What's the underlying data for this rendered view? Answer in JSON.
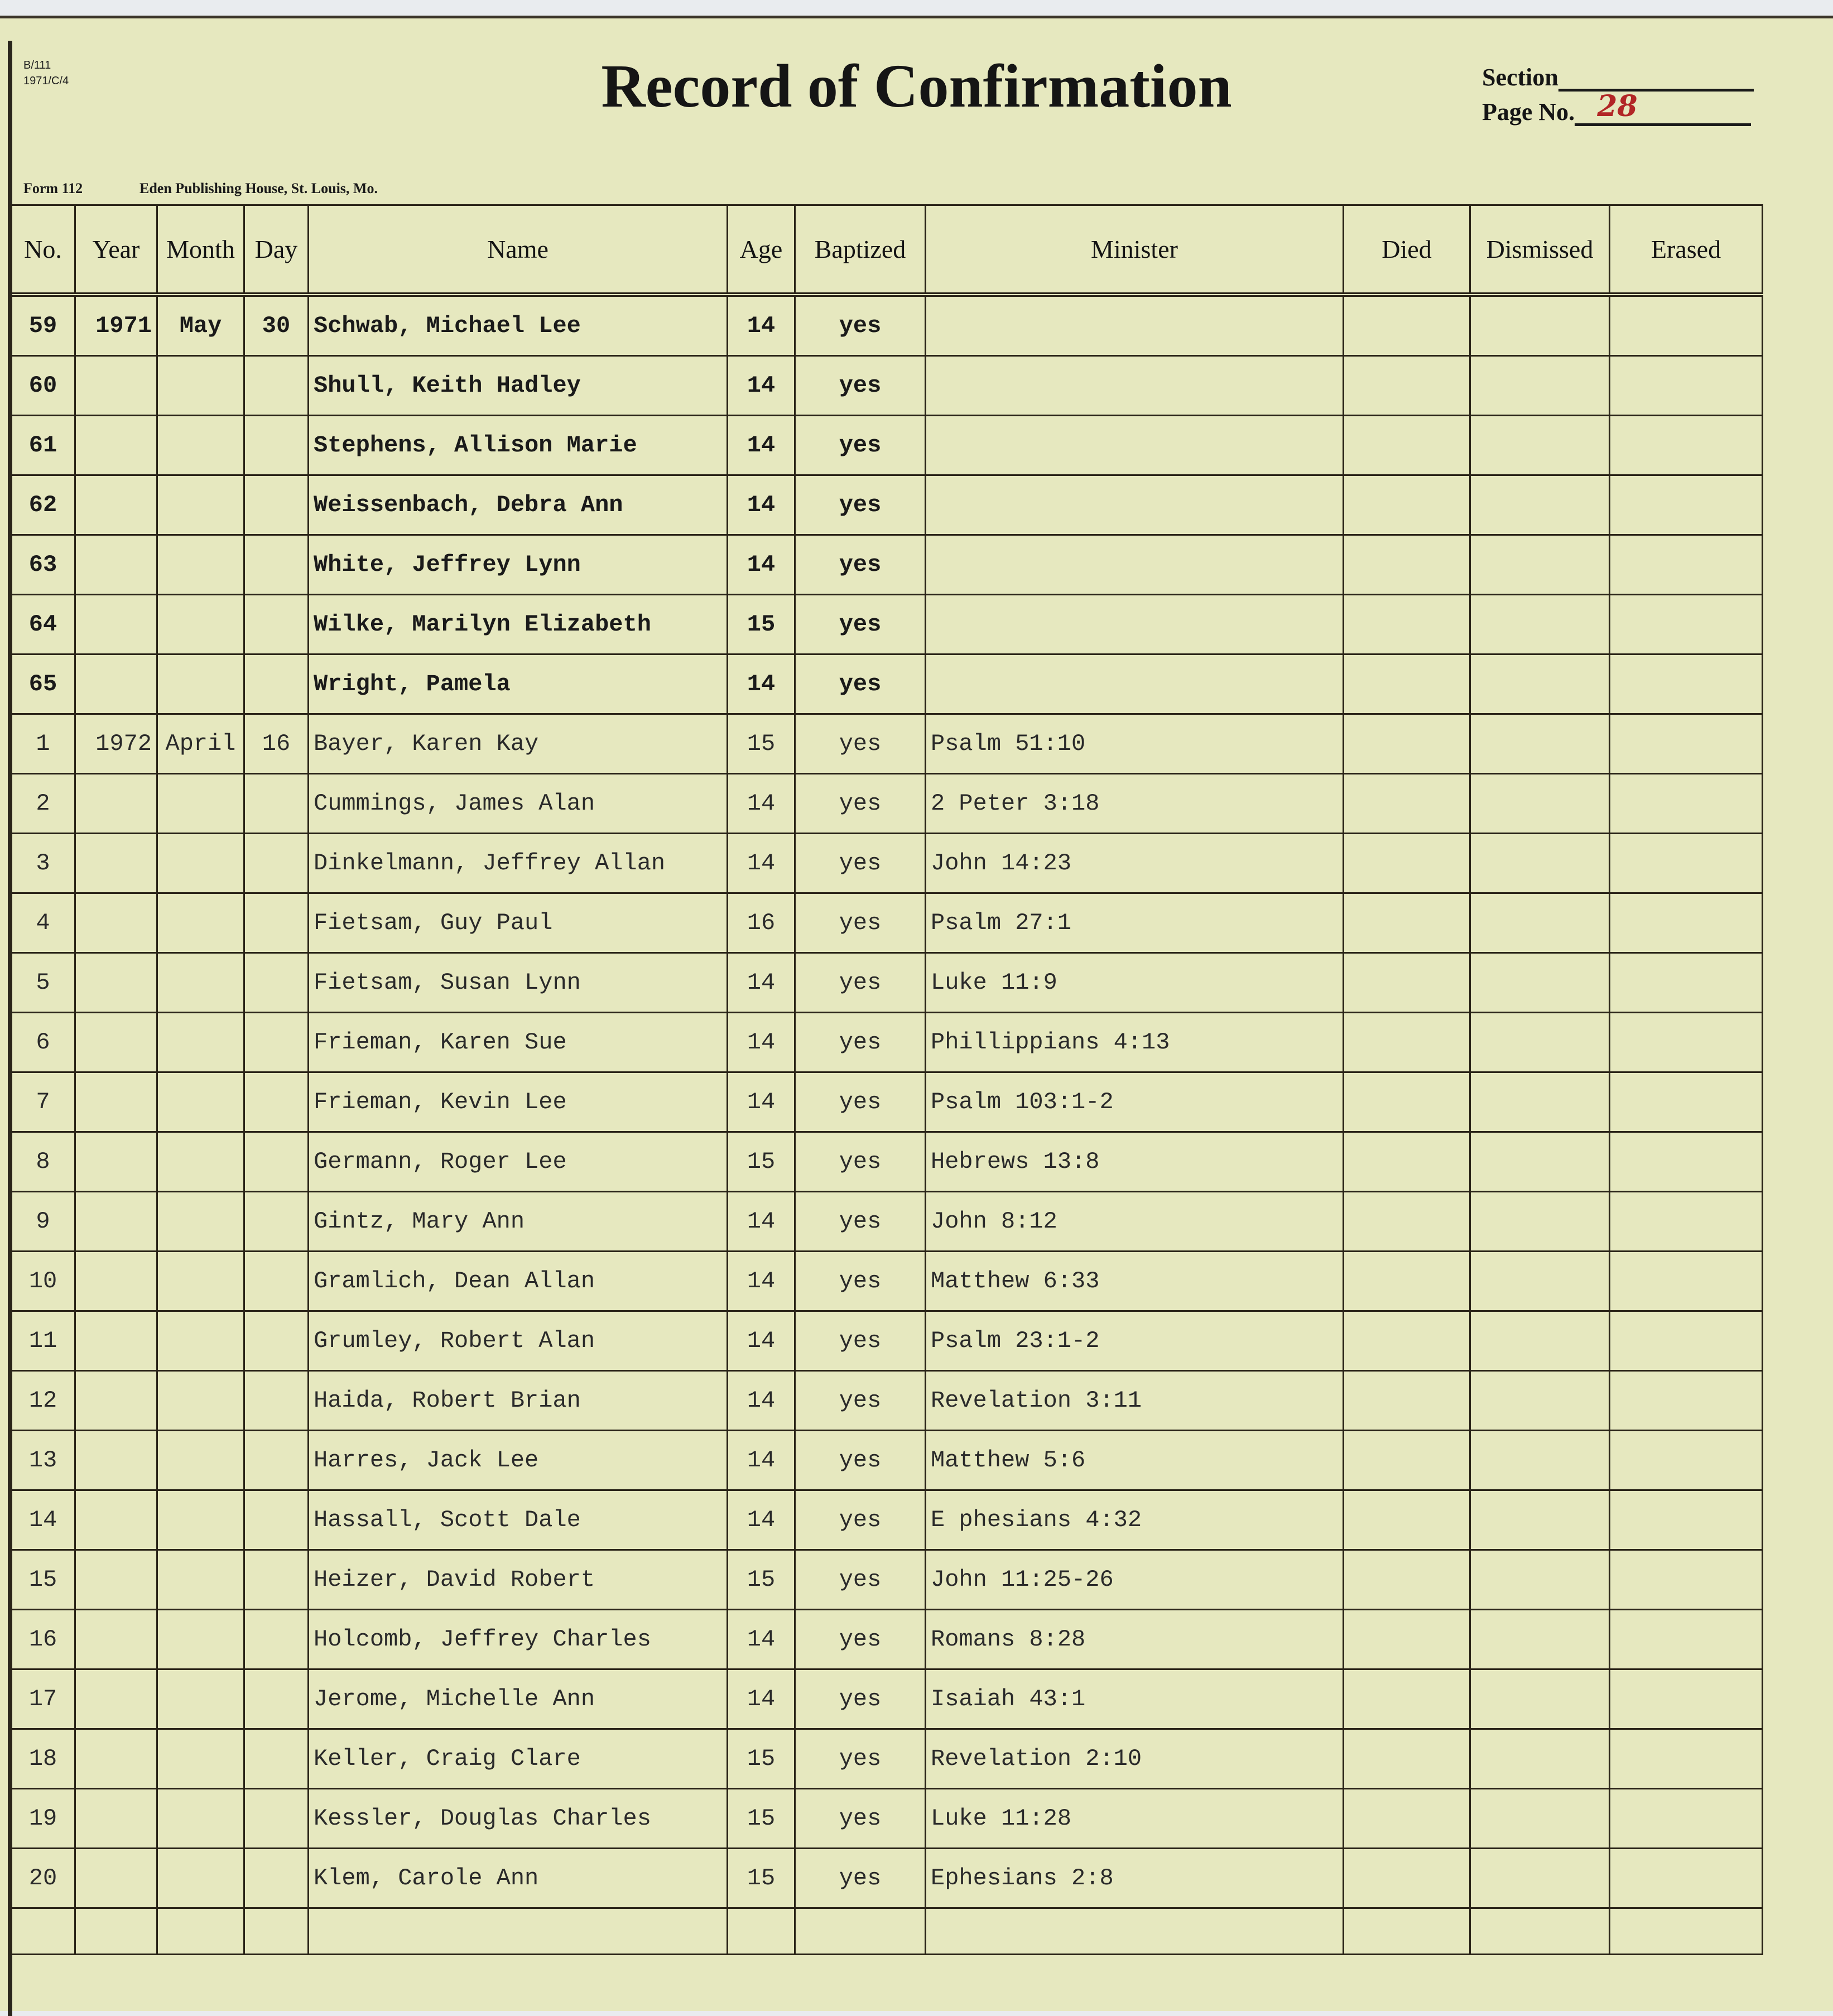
{
  "archive_ref": [
    "B/111",
    "1971/C/4"
  ],
  "title": "Record of Confirmation",
  "section": {
    "label": "Section",
    "value": ""
  },
  "page_no": {
    "label": "Page No.",
    "value": "28"
  },
  "form": "Form 112",
  "publisher": "Eden Publishing House, St. Louis, Mo.",
  "columns": [
    "No.",
    "Year",
    "Month",
    "Day",
    "Name",
    "Age",
    "Baptized",
    "Minister",
    "Died",
    "Dismissed",
    "Erased"
  ],
  "rows": [
    {
      "no": "59",
      "year": "1971",
      "month": "May",
      "day": "30",
      "name": "Schwab, Michael Lee",
      "age": "14",
      "baptized": "yes",
      "minister": ""
    },
    {
      "no": "60",
      "year": "",
      "month": "",
      "day": "",
      "name": "Shull, Keith Hadley",
      "age": "14",
      "baptized": "yes",
      "minister": ""
    },
    {
      "no": "61",
      "year": "",
      "month": "",
      "day": "",
      "name": "Stephens, Allison Marie",
      "age": "14",
      "baptized": "yes",
      "minister": ""
    },
    {
      "no": "62",
      "year": "",
      "month": "",
      "day": "",
      "name": "Weissenbach, Debra Ann",
      "age": "14",
      "baptized": "yes",
      "minister": ""
    },
    {
      "no": "63",
      "year": "",
      "month": "",
      "day": "",
      "name": "White, Jeffrey Lynn",
      "age": "14",
      "baptized": "yes",
      "minister": ""
    },
    {
      "no": "64",
      "year": "",
      "month": "",
      "day": "",
      "name": "Wilke, Marilyn Elizabeth",
      "age": "15",
      "baptized": "yes",
      "minister": ""
    },
    {
      "no": "65",
      "year": "",
      "month": "",
      "day": "",
      "name": "Wright, Pamela",
      "age": "14",
      "baptized": "yes",
      "minister": ""
    },
    {
      "no": "1",
      "year": "1972",
      "month": "April",
      "day": "16",
      "name": "Bayer, Karen Kay",
      "age": "15",
      "baptized": "yes",
      "minister": "Psalm 51:10"
    },
    {
      "no": "2",
      "year": "",
      "month": "",
      "day": "",
      "name": "Cummings, James Alan",
      "age": "14",
      "baptized": "yes",
      "minister": "2 Peter 3:18"
    },
    {
      "no": "3",
      "year": "",
      "month": "",
      "day": "",
      "name": "Dinkelmann, Jeffrey Allan",
      "age": "14",
      "baptized": "yes",
      "minister": "John 14:23"
    },
    {
      "no": "4",
      "year": "",
      "month": "",
      "day": "",
      "name": "Fietsam, Guy Paul",
      "age": "16",
      "baptized": "yes",
      "minister": "Psalm 27:1"
    },
    {
      "no": "5",
      "year": "",
      "month": "",
      "day": "",
      "name": "Fietsam, Susan Lynn",
      "age": "14",
      "baptized": "yes",
      "minister": "Luke 11:9"
    },
    {
      "no": "6",
      "year": "",
      "month": "",
      "day": "",
      "name": "Frieman, Karen Sue",
      "age": "14",
      "baptized": "yes",
      "minister": "Phillippians 4:13"
    },
    {
      "no": "7",
      "year": "",
      "month": "",
      "day": "",
      "name": "Frieman, Kevin Lee",
      "age": "14",
      "baptized": "yes",
      "minister": "Psalm 103:1-2"
    },
    {
      "no": "8",
      "year": "",
      "month": "",
      "day": "",
      "name": "Germann, Roger Lee",
      "age": "15",
      "baptized": "yes",
      "minister": "Hebrews 13:8"
    },
    {
      "no": "9",
      "year": "",
      "month": "",
      "day": "",
      "name": "Gintz, Mary Ann",
      "age": "14",
      "baptized": "yes",
      "minister": "John 8:12"
    },
    {
      "no": "10",
      "year": "",
      "month": "",
      "day": "",
      "name": "Gramlich, Dean Allan",
      "age": "14",
      "baptized": "yes",
      "minister": "Matthew 6:33"
    },
    {
      "no": "11",
      "year": "",
      "month": "",
      "day": "",
      "name": "Grumley, Robert Alan",
      "age": "14",
      "baptized": "yes",
      "minister": "Psalm 23:1-2"
    },
    {
      "no": "12",
      "year": "",
      "month": "",
      "day": "",
      "name": "Haida, Robert Brian",
      "age": "14",
      "baptized": "yes",
      "minister": "Revelation 3:11"
    },
    {
      "no": "13",
      "year": "",
      "month": "",
      "day": "",
      "name": "Harres, Jack Lee",
      "age": "14",
      "baptized": "yes",
      "minister": "Matthew 5:6"
    },
    {
      "no": "14",
      "year": "",
      "month": "",
      "day": "",
      "name": "Hassall, Scott Dale",
      "age": "14",
      "baptized": "yes",
      "minister": "E phesians 4:32"
    },
    {
      "no": "15",
      "year": "",
      "month": "",
      "day": "",
      "name": "Heizer, David Robert",
      "age": "15",
      "baptized": "yes",
      "minister": "John 11:25-26"
    },
    {
      "no": "16",
      "year": "",
      "month": "",
      "day": "",
      "name": "Holcomb, Jeffrey Charles",
      "age": "14",
      "baptized": "yes",
      "minister": "Romans 8:28"
    },
    {
      "no": "17",
      "year": "",
      "month": "",
      "day": "",
      "name": "Jerome, Michelle Ann",
      "age": "14",
      "baptized": "yes",
      "minister": "Isaiah 43:1"
    },
    {
      "no": "18",
      "year": "",
      "month": "",
      "day": "",
      "name": "Keller, Craig Clare",
      "age": "15",
      "baptized": "yes",
      "minister": "Revelation 2:10"
    },
    {
      "no": "19",
      "year": "",
      "month": "",
      "day": "",
      "name": "Kessler, Douglas Charles",
      "age": "15",
      "baptized": "yes",
      "minister": "Luke 11:28"
    },
    {
      "no": "20",
      "year": "",
      "month": "",
      "day": "",
      "name": "Klem, Carole Ann",
      "age": "15",
      "baptized": "yes",
      "minister": "Ephesians 2:8"
    }
  ]
}
